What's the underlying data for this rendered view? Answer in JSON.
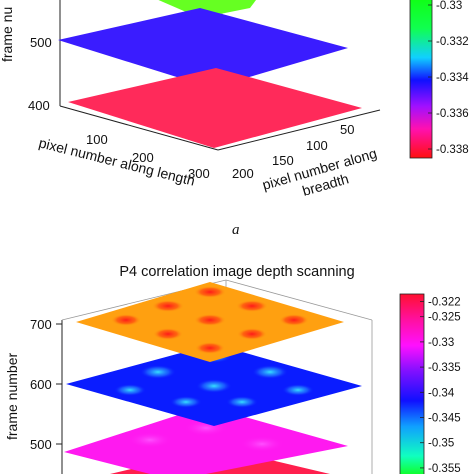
{
  "panel_label": "a",
  "chart_data": [
    {
      "type": "surface-slices",
      "panel": "top",
      "title": "",
      "xlabel": "pixel number along length",
      "ylabel": [
        "pixel number along",
        "breadth"
      ],
      "zlabel": "frame nu",
      "x_ticks": [
        "100",
        "200",
        "300"
      ],
      "y_ticks": [
        "50",
        "100",
        "150",
        "200"
      ],
      "z_ticks": [
        "400",
        "500"
      ],
      "xlim": [
        0,
        300
      ],
      "ylim": [
        0,
        200
      ],
      "slices": [
        {
          "frame": 400,
          "color": "#ff2a5a"
        },
        {
          "frame": 500,
          "color": "#3a1cff"
        },
        {
          "frame": 600,
          "color": "#66ff22"
        }
      ],
      "colorbar": {
        "ticks": [
          "-0.33",
          "-0.332",
          "-0.334",
          "-0.336",
          "-0.338"
        ],
        "range": [
          -0.3385,
          -0.3295
        ]
      }
    },
    {
      "type": "surface-slices",
      "panel": "bottom",
      "title": "P4 correlation image depth scanning",
      "zlabel": "frame number",
      "z_ticks": [
        "500",
        "600",
        "700"
      ],
      "slices": [
        {
          "frame": 400,
          "color": "#ff1f4d"
        },
        {
          "frame": 500,
          "color": "#ff19f0"
        },
        {
          "frame": 600,
          "color": "#0a1cff"
        },
        {
          "frame": 700,
          "color": "#ffa010"
        }
      ],
      "colorbar": {
        "ticks": [
          "-0.322",
          "-0.325",
          "-0.33",
          "-0.335",
          "-0.34",
          "-0.345",
          "-0.35",
          "-0.355"
        ],
        "range": [
          -0.357,
          -0.3205
        ]
      }
    }
  ]
}
